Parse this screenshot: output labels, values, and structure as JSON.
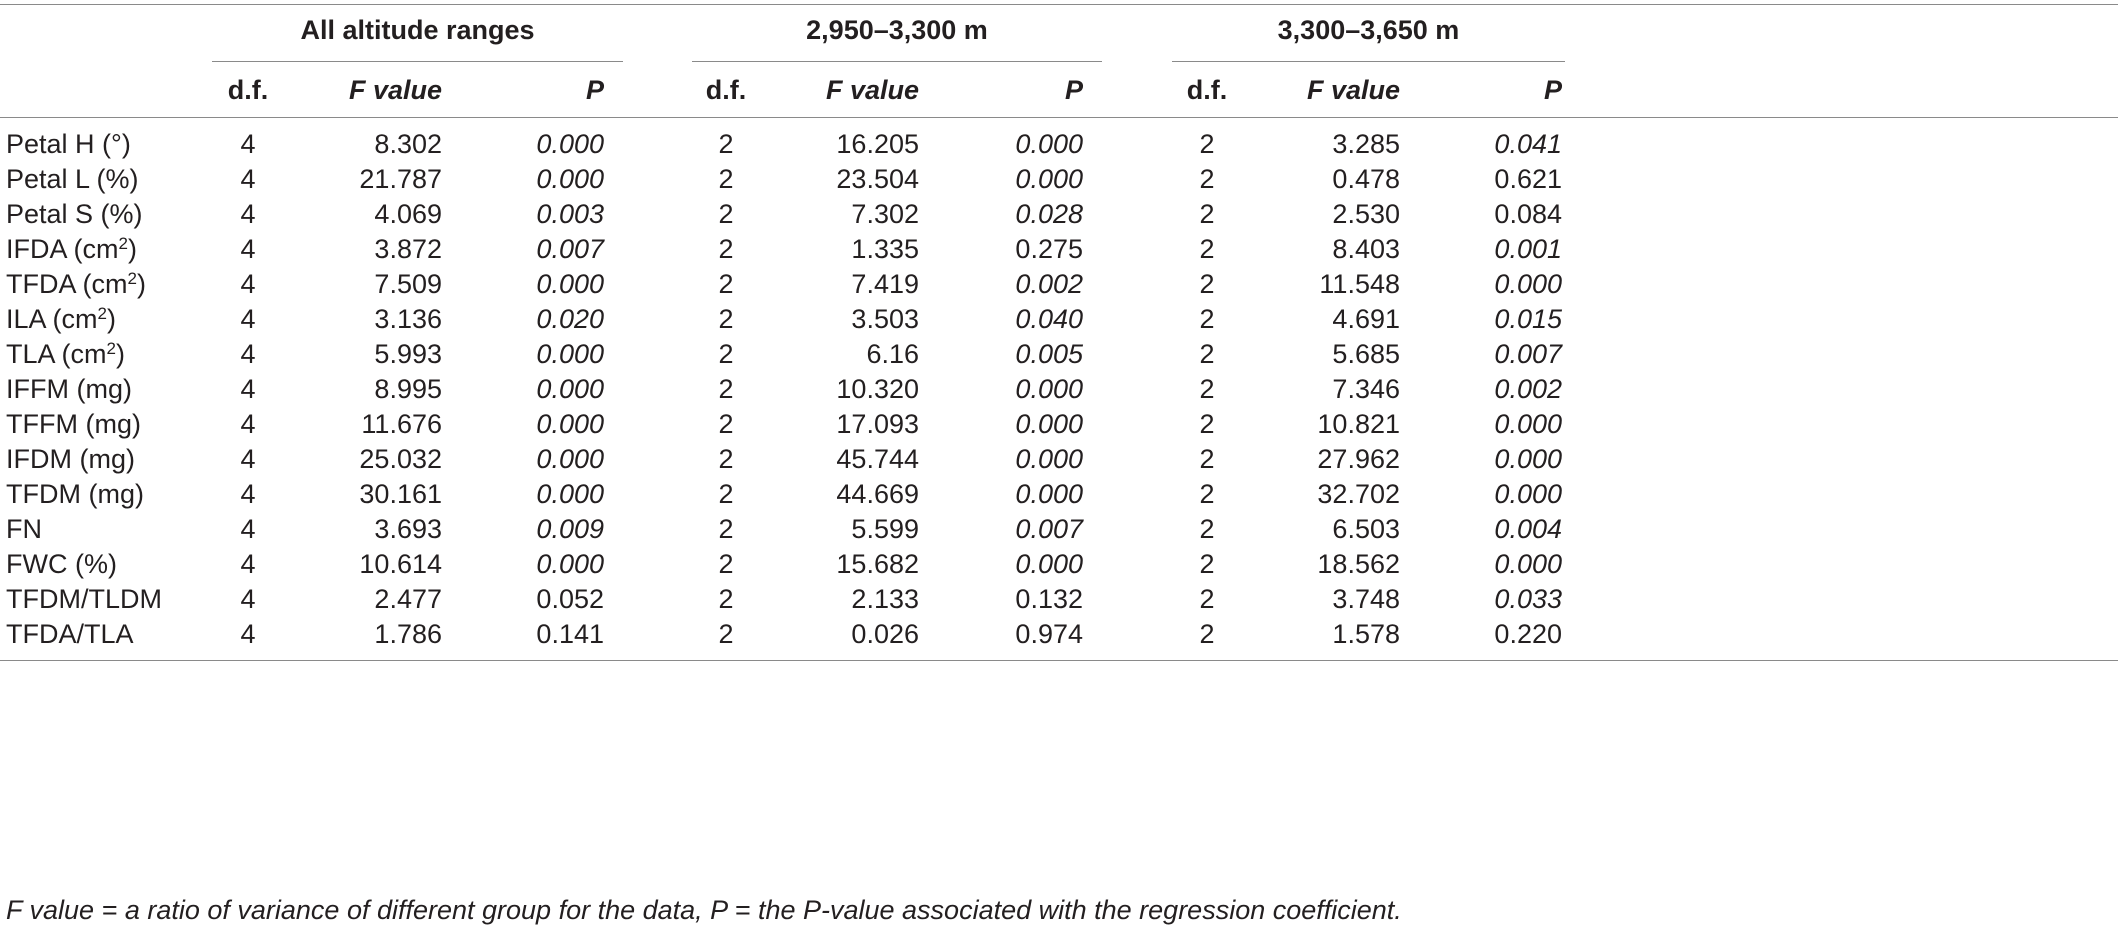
{
  "groups": [
    {
      "title": "All altitude ranges"
    },
    {
      "title": "2,950–3,300 m"
    },
    {
      "title": "3,300–3,650 m"
    }
  ],
  "column_headers": {
    "df": "d.f.",
    "f": "F value",
    "p": "P"
  },
  "rows": [
    {
      "label": "Petal H (°)",
      "sup": "",
      "cells": [
        {
          "df": "4",
          "f": "8.302",
          "p": "0.000",
          "sig": true
        },
        {
          "df": "2",
          "f": "16.205",
          "p": "0.000",
          "sig": true
        },
        {
          "df": "2",
          "f": "3.285",
          "p": "0.041",
          "sig": true
        }
      ]
    },
    {
      "label": "Petal L (%)",
      "sup": "",
      "cells": [
        {
          "df": "4",
          "f": "21.787",
          "p": "0.000",
          "sig": true
        },
        {
          "df": "2",
          "f": "23.504",
          "p": "0.000",
          "sig": true
        },
        {
          "df": "2",
          "f": "0.478",
          "p": "0.621",
          "sig": false
        }
      ]
    },
    {
      "label": "Petal S (%)",
      "sup": "",
      "cells": [
        {
          "df": "4",
          "f": "4.069",
          "p": "0.003",
          "sig": true
        },
        {
          "df": "2",
          "f": "7.302",
          "p": "0.028",
          "sig": true
        },
        {
          "df": "2",
          "f": "2.530",
          "p": "0.084",
          "sig": false
        }
      ]
    },
    {
      "label": "IFDA (cm",
      "sup": "2",
      "tail": ")",
      "cells": [
        {
          "df": "4",
          "f": "3.872",
          "p": "0.007",
          "sig": true
        },
        {
          "df": "2",
          "f": "1.335",
          "p": "0.275",
          "sig": false
        },
        {
          "df": "2",
          "f": "8.403",
          "p": "0.001",
          "sig": true
        }
      ]
    },
    {
      "label": "TFDA (cm",
      "sup": "2",
      "tail": ")",
      "cells": [
        {
          "df": "4",
          "f": "7.509",
          "p": "0.000",
          "sig": true
        },
        {
          "df": "2",
          "f": "7.419",
          "p": "0.002",
          "sig": true
        },
        {
          "df": "2",
          "f": "11.548",
          "p": "0.000",
          "sig": true
        }
      ]
    },
    {
      "label": "ILA (cm",
      "sup": "2",
      "tail": ")",
      "cells": [
        {
          "df": "4",
          "f": "3.136",
          "p": "0.020",
          "sig": true
        },
        {
          "df": "2",
          "f": "3.503",
          "p": "0.040",
          "sig": true
        },
        {
          "df": "2",
          "f": "4.691",
          "p": "0.015",
          "sig": true
        }
      ]
    },
    {
      "label": "TLA (cm",
      "sup": "2",
      "tail": ")",
      "cells": [
        {
          "df": "4",
          "f": "5.993",
          "p": "0.000",
          "sig": true
        },
        {
          "df": "2",
          "f": "6.16",
          "p": "0.005",
          "sig": true
        },
        {
          "df": "2",
          "f": "5.685",
          "p": "0.007",
          "sig": true
        }
      ]
    },
    {
      "label": "IFFM (mg)",
      "sup": "",
      "cells": [
        {
          "df": "4",
          "f": "8.995",
          "p": "0.000",
          "sig": true
        },
        {
          "df": "2",
          "f": "10.320",
          "p": "0.000",
          "sig": true
        },
        {
          "df": "2",
          "f": "7.346",
          "p": "0.002",
          "sig": true
        }
      ]
    },
    {
      "label": "TFFM (mg)",
      "sup": "",
      "cells": [
        {
          "df": "4",
          "f": "11.676",
          "p": "0.000",
          "sig": true
        },
        {
          "df": "2",
          "f": "17.093",
          "p": "0.000",
          "sig": true
        },
        {
          "df": "2",
          "f": "10.821",
          "p": "0.000",
          "sig": true
        }
      ]
    },
    {
      "label": "IFDM (mg)",
      "sup": "",
      "cells": [
        {
          "df": "4",
          "f": "25.032",
          "p": "0.000",
          "sig": true
        },
        {
          "df": "2",
          "f": "45.744",
          "p": "0.000",
          "sig": true
        },
        {
          "df": "2",
          "f": "27.962",
          "p": "0.000",
          "sig": true
        }
      ]
    },
    {
      "label": "TFDM (mg)",
      "sup": "",
      "cells": [
        {
          "df": "4",
          "f": "30.161",
          "p": "0.000",
          "sig": true
        },
        {
          "df": "2",
          "f": "44.669",
          "p": "0.000",
          "sig": true
        },
        {
          "df": "2",
          "f": "32.702",
          "p": "0.000",
          "sig": true
        }
      ]
    },
    {
      "label": "FN",
      "sup": "",
      "cells": [
        {
          "df": "4",
          "f": "3.693",
          "p": "0.009",
          "sig": true
        },
        {
          "df": "2",
          "f": "5.599",
          "p": "0.007",
          "sig": true
        },
        {
          "df": "2",
          "f": "6.503",
          "p": "0.004",
          "sig": true
        }
      ]
    },
    {
      "label": "FWC (%)",
      "sup": "",
      "cells": [
        {
          "df": "4",
          "f": "10.614",
          "p": "0.000",
          "sig": true
        },
        {
          "df": "2",
          "f": "15.682",
          "p": "0.000",
          "sig": true
        },
        {
          "df": "2",
          "f": "18.562",
          "p": "0.000",
          "sig": true
        }
      ]
    },
    {
      "label": "TFDM/TLDM",
      "sup": "",
      "cells": [
        {
          "df": "4",
          "f": "2.477",
          "p": "0.052",
          "sig": false
        },
        {
          "df": "2",
          "f": "2.133",
          "p": "0.132",
          "sig": false
        },
        {
          "df": "2",
          "f": "3.748",
          "p": "0.033",
          "sig": true
        }
      ]
    },
    {
      "label": "TFDA/TLA",
      "sup": "",
      "cells": [
        {
          "df": "4",
          "f": "1.786",
          "p": "0.141",
          "sig": false
        },
        {
          "df": "2",
          "f": "0.026",
          "p": "0.974",
          "sig": false
        },
        {
          "df": "2",
          "f": "1.578",
          "p": "0.220",
          "sig": false
        }
      ]
    }
  ],
  "footnote": "F value = a ratio of variance of different group for the data, P = the P-value associated with the regression coefficient."
}
